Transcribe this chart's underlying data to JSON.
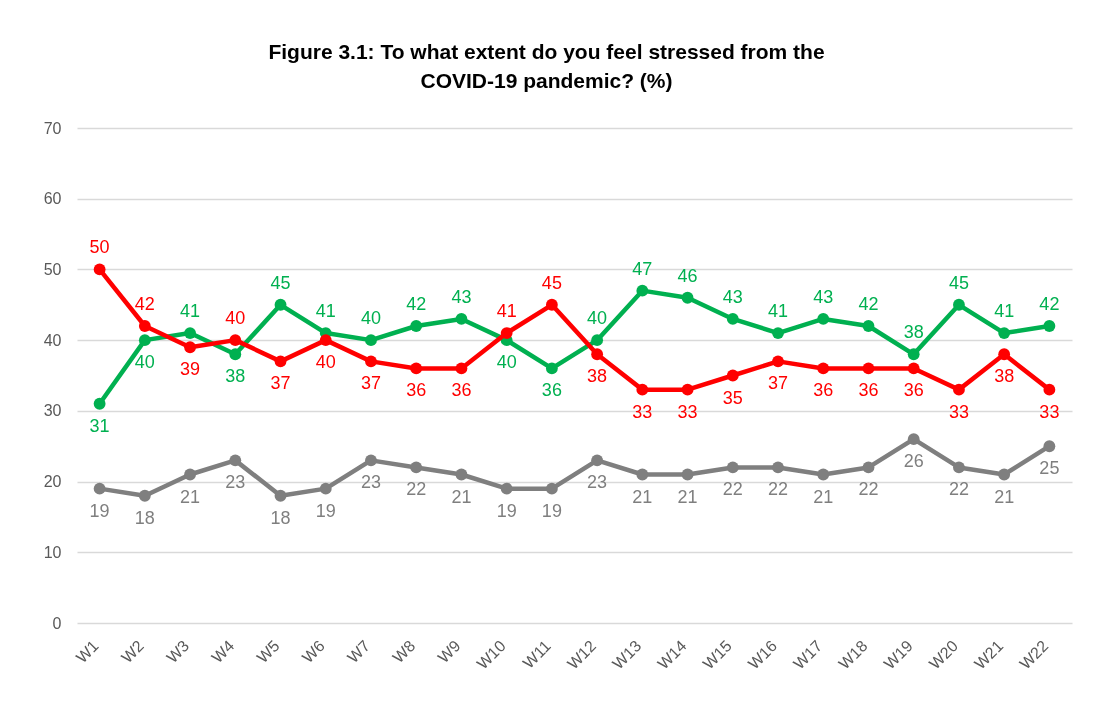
{
  "chart_data": {
    "type": "line",
    "title": "Figure 3.1: To what extent do you feel stressed from the COVID-19 pandemic? (%)",
    "categories": [
      "W1",
      "W2",
      "W3",
      "W4",
      "W5",
      "W6",
      "W7",
      "W8",
      "W9",
      "W10",
      "W11",
      "W12",
      "W13",
      "W14",
      "W15",
      "W16",
      "W17",
      "W18",
      "W19",
      "W20",
      "W21",
      "W22"
    ],
    "series": [
      {
        "color": "#00b050",
        "values": [
          31,
          40,
          41,
          38,
          45,
          41,
          40,
          42,
          43,
          40,
          36,
          40,
          47,
          46,
          43,
          41,
          43,
          42,
          38,
          45,
          41,
          42
        ]
      },
      {
        "color": "#ff0000",
        "values": [
          50,
          42,
          39,
          40,
          37,
          40,
          37,
          36,
          36,
          41,
          45,
          38,
          33,
          33,
          35,
          37,
          36,
          36,
          36,
          33,
          38,
          33
        ]
      },
      {
        "color": "#7f7f7f",
        "values": [
          19,
          18,
          21,
          23,
          18,
          19,
          23,
          22,
          21,
          19,
          19,
          23,
          21,
          21,
          22,
          22,
          21,
          22,
          26,
          22,
          21,
          25
        ]
      }
    ],
    "ylim": [
      0,
      70
    ],
    "yticks": [
      0,
      10,
      20,
      30,
      40,
      50,
      60,
      70
    ],
    "grid": "y",
    "marker": "circle",
    "line_style": "solid",
    "data_labels": true
  }
}
